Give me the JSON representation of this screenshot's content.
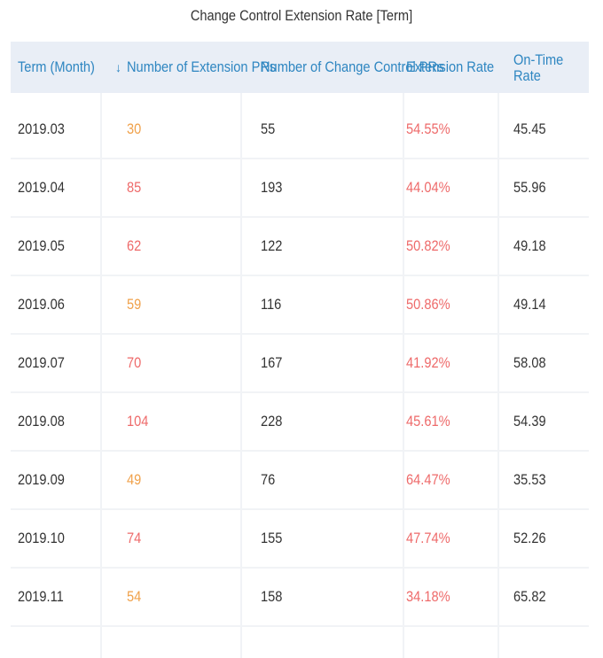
{
  "title": "Change Control Extension Rate [Term]",
  "columns": {
    "term": "Term (Month)",
    "extension_prs": "Number of Extension PRs",
    "change_control_prs": "Number of Change Control PRs",
    "extension_rate": "Extension Rate",
    "on_time_rate": "On-Time Rate"
  },
  "rows": [
    {
      "term": "2019.03",
      "ext": "30",
      "ext_color": "orange",
      "cc": "55",
      "rate": "54.55%",
      "ontime": "45.45"
    },
    {
      "term": "2019.04",
      "ext": "85",
      "ext_color": "red",
      "cc": "193",
      "rate": "44.04%",
      "ontime": "55.96"
    },
    {
      "term": "2019.05",
      "ext": "62",
      "ext_color": "red",
      "cc": "122",
      "rate": "50.82%",
      "ontime": "49.18"
    },
    {
      "term": "2019.06",
      "ext": "59",
      "ext_color": "orange",
      "cc": "116",
      "rate": "50.86%",
      "ontime": "49.14"
    },
    {
      "term": "2019.07",
      "ext": "70",
      "ext_color": "red",
      "cc": "167",
      "rate": "41.92%",
      "ontime": "58.08"
    },
    {
      "term": "2019.08",
      "ext": "104",
      "ext_color": "red",
      "cc": "228",
      "rate": "45.61%",
      "ontime": "54.39"
    },
    {
      "term": "2019.09",
      "ext": "49",
      "ext_color": "orange",
      "cc": "76",
      "rate": "64.47%",
      "ontime": "35.53"
    },
    {
      "term": "2019.10",
      "ext": "74",
      "ext_color": "red",
      "cc": "155",
      "rate": "47.74%",
      "ontime": "52.26"
    },
    {
      "term": "2019.11",
      "ext": "54",
      "ext_color": "orange",
      "cc": "158",
      "rate": "34.18%",
      "ontime": "65.82"
    }
  ],
  "colors": {
    "header_text": "#2e86c1",
    "orange": "#f0a14a",
    "red": "#ee6a6a",
    "header_bg": "#e9eef6"
  },
  "icons": {
    "sort": "sort-arrow-icon"
  }
}
